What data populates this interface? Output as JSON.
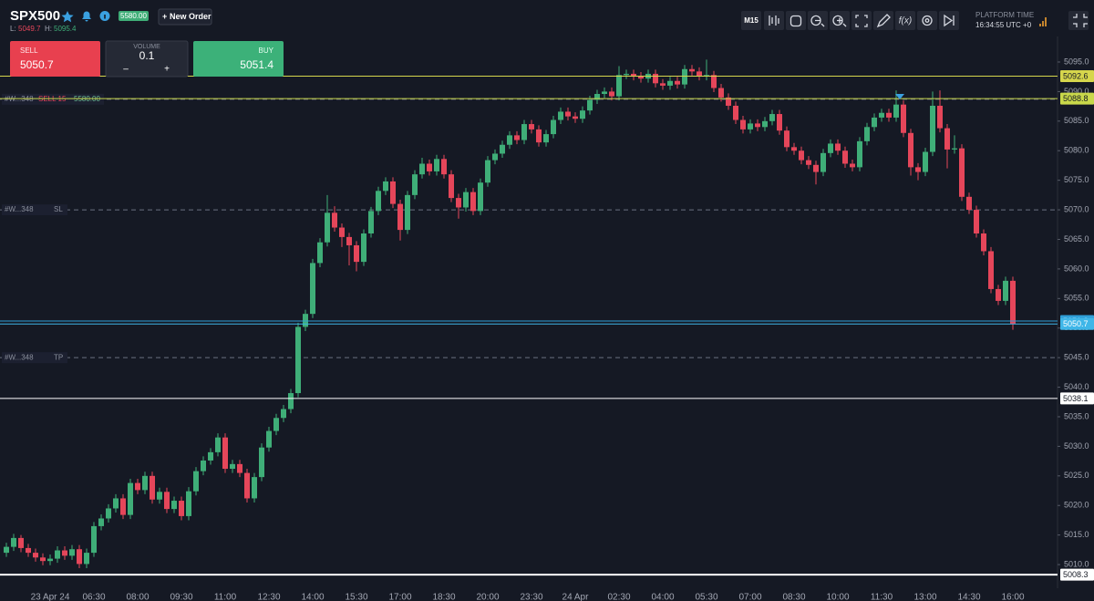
{
  "header": {
    "symbol": "SPX500",
    "badge": "5580.00",
    "low_label": "L:",
    "low": "5049.7",
    "high_label": "H:",
    "high": "5095.4",
    "new_order": "New Order"
  },
  "trade_panel": {
    "sell_label": "SELL",
    "sell_price": "5050.7",
    "volume_label": "VOLUME",
    "volume": "0.1",
    "minus": "–",
    "plus": "+",
    "buy_label": "BUY",
    "buy_price": "5051.4"
  },
  "toolbar": {
    "timeframe": "M15",
    "platform_time_label": "PLATFORM TIME",
    "platform_time": "16:34:55 UTC +0"
  },
  "chart_data": {
    "type": "candlestick",
    "up_color": "#3fae78",
    "down_color": "#e5465a",
    "ylim": [
      5006,
      5096
    ],
    "yticks": [
      {
        "value": 5010,
        "label": "5010.0"
      },
      {
        "value": 5015,
        "label": "5015.0"
      },
      {
        "value": 5020,
        "label": "5020.0"
      },
      {
        "value": 5025,
        "label": "5025.0"
      },
      {
        "value": 5030,
        "label": "5030.0"
      },
      {
        "value": 5035,
        "label": "5035.0"
      },
      {
        "value": 5040,
        "label": "5040.0"
      },
      {
        "value": 5045,
        "label": "5045.0"
      },
      {
        "value": 5050,
        "label": "5050.0"
      },
      {
        "value": 5055,
        "label": "5055.0"
      },
      {
        "value": 5060,
        "label": "5060.0"
      },
      {
        "value": 5065,
        "label": "5065.0"
      },
      {
        "value": 5070,
        "label": "5070.0"
      },
      {
        "value": 5075,
        "label": "5075.0"
      },
      {
        "value": 5080,
        "label": "5080.0"
      },
      {
        "value": 5085,
        "label": "5085.0"
      },
      {
        "value": 5090,
        "label": "5090.0"
      },
      {
        "value": 5095,
        "label": "5095.0"
      }
    ],
    "xticks": [
      "23 Apr 24",
      "06:30",
      "08:00",
      "09:30",
      "11:00",
      "12:30",
      "14:00",
      "15:30",
      "17:00",
      "18:30",
      "20:00",
      "23:30",
      "24 Apr",
      "02:30",
      "04:00",
      "05:30",
      "07:00",
      "08:30",
      "10:00",
      "11:30",
      "13:00",
      "14:30",
      "16:00"
    ],
    "price_lines": [
      {
        "value": 5092.6,
        "color": "#d6d64c"
      },
      {
        "value": 5088.8,
        "color": "#c9d84a"
      },
      {
        "value": 5038.1,
        "color": "#ffffff"
      },
      {
        "value": 5008.3,
        "color": "#ffffff"
      },
      {
        "value": 5051.2,
        "color": "#2f9fd8"
      },
      {
        "value": 5050.7,
        "color": "#3fb6e8"
      }
    ],
    "order_lines": [
      {
        "id": "#W...348",
        "label": "SELL 15",
        "price": "5580.00",
        "value": 5088.7
      },
      {
        "id": "#W...348",
        "label": "SL",
        "value": 5070.0
      },
      {
        "id": "#W...348",
        "label": "TP",
        "value": 5045.0
      }
    ],
    "candles": [
      [
        5012.0,
        5013.7,
        5011.3,
        5013.0
      ],
      [
        5013.0,
        5015.2,
        5012.3,
        5014.5
      ],
      [
        5014.5,
        5015.0,
        5012.1,
        5012.8
      ],
      [
        5012.8,
        5013.5,
        5011.3,
        5012.0
      ],
      [
        5012.0,
        5012.7,
        5010.5,
        5011.2
      ],
      [
        5011.2,
        5011.9,
        5009.9,
        5010.6
      ],
      [
        5010.6,
        5011.7,
        5009.9,
        5011.0
      ],
      [
        5011.0,
        5013.1,
        5010.3,
        5012.4
      ],
      [
        5012.4,
        5013.1,
        5010.8,
        5011.5
      ],
      [
        5011.5,
        5013.3,
        5010.8,
        5012.6
      ],
      [
        5012.6,
        5013.3,
        5009.4,
        5010.1
      ],
      [
        5010.1,
        5012.7,
        5009.4,
        5012.0
      ],
      [
        5012.0,
        5017.2,
        5011.3,
        5016.5
      ],
      [
        5016.5,
        5018.5,
        5015.8,
        5017.8
      ],
      [
        5017.8,
        5020.2,
        5017.1,
        5019.5
      ],
      [
        5019.5,
        5021.9,
        5018.8,
        5021.2
      ],
      [
        5021.2,
        5021.9,
        5017.7,
        5018.4
      ],
      [
        5018.4,
        5024.5,
        5017.7,
        5023.8
      ],
      [
        5023.8,
        5024.5,
        5021.9,
        5022.6
      ],
      [
        5022.6,
        5025.7,
        5021.9,
        5025.0
      ],
      [
        5025.0,
        5025.7,
        5020.3,
        5021.0
      ],
      [
        5021.0,
        5023.0,
        5020.3,
        5022.3
      ],
      [
        5022.3,
        5023.0,
        5018.7,
        5019.4
      ],
      [
        5019.4,
        5021.5,
        5018.7,
        5020.8
      ],
      [
        5020.8,
        5021.5,
        5017.5,
        5018.2
      ],
      [
        5018.2,
        5023.1,
        5017.5,
        5022.4
      ],
      [
        5022.4,
        5026.5,
        5021.7,
        5025.8
      ],
      [
        5025.8,
        5028.3,
        5025.1,
        5027.6
      ],
      [
        5027.6,
        5029.7,
        5026.9,
        5029.0
      ],
      [
        5029.0,
        5032.2,
        5028.3,
        5031.5
      ],
      [
        5031.5,
        5032.2,
        5025.5,
        5026.2
      ],
      [
        5026.2,
        5027.7,
        5025.5,
        5027.0
      ],
      [
        5027.0,
        5027.7,
        5024.8,
        5025.5
      ],
      [
        5025.5,
        5026.2,
        5020.5,
        5021.2
      ],
      [
        5021.2,
        5025.5,
        5020.5,
        5024.8
      ],
      [
        5024.8,
        5030.5,
        5024.1,
        5029.8
      ],
      [
        5029.8,
        5033.3,
        5029.1,
        5032.6
      ],
      [
        5032.6,
        5035.5,
        5031.9,
        5034.8
      ],
      [
        5034.8,
        5037.0,
        5034.1,
        5036.3
      ],
      [
        5036.3,
        5039.7,
        5035.6,
        5039.0
      ],
      [
        5039.0,
        5050.9,
        5038.3,
        5050.2
      ],
      [
        5050.2,
        5053.1,
        5049.5,
        5052.4
      ],
      [
        5052.4,
        5061.7,
        5051.7,
        5061.0
      ],
      [
        5061.0,
        5065.2,
        5060.3,
        5064.5
      ],
      [
        5064.5,
        5072.5,
        5063.8,
        5069.5
      ],
      [
        5069.5,
        5070.6,
        5066.3,
        5067.0
      ],
      [
        5067.0,
        5067.7,
        5063.7,
        5065.4
      ],
      [
        5065.4,
        5066.1,
        5060.6,
        5064.0
      ],
      [
        5064.0,
        5064.7,
        5059.6,
        5061.2
      ],
      [
        5061.2,
        5066.7,
        5060.5,
        5066.0
      ],
      [
        5066.0,
        5070.5,
        5065.3,
        5069.8
      ],
      [
        5069.8,
        5073.9,
        5069.1,
        5073.2
      ],
      [
        5073.2,
        5075.5,
        5072.5,
        5074.8
      ],
      [
        5074.8,
        5075.5,
        5070.3,
        5071.0
      ],
      [
        5071.0,
        5071.7,
        5064.8,
        5066.6
      ],
      [
        5066.6,
        5073.2,
        5065.9,
        5072.5
      ],
      [
        5072.5,
        5076.7,
        5071.8,
        5076.0
      ],
      [
        5076.0,
        5078.8,
        5075.3,
        5077.8
      ],
      [
        5077.8,
        5078.5,
        5075.8,
        5076.5
      ],
      [
        5076.5,
        5079.3,
        5075.8,
        5078.6
      ],
      [
        5078.6,
        5079.3,
        5075.3,
        5076.0
      ],
      [
        5076.0,
        5076.7,
        5071.3,
        5072.0
      ],
      [
        5072.0,
        5072.7,
        5068.5,
        5070.4
      ],
      [
        5070.4,
        5073.7,
        5069.7,
        5073.0
      ],
      [
        5073.0,
        5073.7,
        5069.1,
        5069.8
      ],
      [
        5069.8,
        5075.3,
        5069.1,
        5074.6
      ],
      [
        5074.6,
        5079.1,
        5073.9,
        5078.4
      ],
      [
        5078.4,
        5080.2,
        5077.7,
        5079.5
      ],
      [
        5079.5,
        5081.7,
        5078.8,
        5081.0
      ],
      [
        5081.0,
        5083.3,
        5080.3,
        5082.6
      ],
      [
        5082.6,
        5083.3,
        5081.1,
        5081.8
      ],
      [
        5081.8,
        5085.2,
        5081.1,
        5084.5
      ],
      [
        5084.5,
        5085.2,
        5082.9,
        5083.6
      ],
      [
        5083.6,
        5084.3,
        5080.7,
        5081.4
      ],
      [
        5081.4,
        5083.5,
        5080.7,
        5082.8
      ],
      [
        5082.8,
        5085.9,
        5082.1,
        5085.2
      ],
      [
        5085.2,
        5087.3,
        5084.5,
        5086.6
      ],
      [
        5086.6,
        5087.3,
        5085.1,
        5085.8
      ],
      [
        5085.8,
        5086.5,
        5084.7,
        5085.4
      ],
      [
        5085.4,
        5087.5,
        5084.7,
        5086.8
      ],
      [
        5086.8,
        5089.3,
        5086.1,
        5088.6
      ],
      [
        5088.6,
        5090.3,
        5087.9,
        5089.6
      ],
      [
        5089.6,
        5090.7,
        5088.9,
        5090.0
      ],
      [
        5090.0,
        5090.7,
        5088.5,
        5089.2
      ],
      [
        5089.2,
        5094.3,
        5088.5,
        5092.8
      ],
      [
        5092.8,
        5093.7,
        5092.1,
        5093.0
      ],
      [
        5093.0,
        5093.7,
        5091.9,
        5092.6
      ],
      [
        5092.6,
        5093.3,
        5091.5,
        5092.2
      ],
      [
        5092.2,
        5093.7,
        5091.5,
        5093.0
      ],
      [
        5093.0,
        5093.7,
        5090.7,
        5091.4
      ],
      [
        5091.4,
        5092.1,
        5090.3,
        5091.0
      ],
      [
        5091.0,
        5092.5,
        5090.3,
        5091.8
      ],
      [
        5091.8,
        5092.5,
        5090.5,
        5091.2
      ],
      [
        5091.2,
        5094.5,
        5090.5,
        5093.8
      ],
      [
        5093.8,
        5094.5,
        5092.7,
        5093.4
      ],
      [
        5093.4,
        5094.1,
        5091.9,
        5092.6
      ],
      [
        5092.6,
        5095.4,
        5091.9,
        5092.8
      ],
      [
        5092.8,
        5093.5,
        5089.9,
        5090.6
      ],
      [
        5090.6,
        5091.3,
        5088.3,
        5089.0
      ],
      [
        5089.0,
        5089.7,
        5086.9,
        5087.6
      ],
      [
        5087.6,
        5088.3,
        5084.5,
        5085.2
      ],
      [
        5085.2,
        5085.9,
        5082.9,
        5083.6
      ],
      [
        5083.6,
        5085.3,
        5082.9,
        5084.6
      ],
      [
        5084.6,
        5085.3,
        5083.3,
        5084.0
      ],
      [
        5084.0,
        5085.7,
        5083.3,
        5085.0
      ],
      [
        5085.0,
        5086.9,
        5084.3,
        5086.2
      ],
      [
        5086.2,
        5086.9,
        5082.7,
        5083.4
      ],
      [
        5083.4,
        5084.1,
        5079.9,
        5080.6
      ],
      [
        5080.6,
        5081.3,
        5079.3,
        5080.0
      ],
      [
        5080.0,
        5080.7,
        5077.7,
        5078.4
      ],
      [
        5078.4,
        5079.1,
        5076.9,
        5077.6
      ],
      [
        5077.6,
        5078.3,
        5074.3,
        5076.4
      ],
      [
        5076.4,
        5080.3,
        5075.7,
        5079.6
      ],
      [
        5079.6,
        5081.9,
        5078.9,
        5081.2
      ],
      [
        5081.2,
        5081.9,
        5079.3,
        5080.0
      ],
      [
        5080.0,
        5080.7,
        5077.1,
        5077.8
      ],
      [
        5077.8,
        5078.5,
        5076.5,
        5077.2
      ],
      [
        5077.2,
        5082.3,
        5076.5,
        5081.6
      ],
      [
        5081.6,
        5084.7,
        5080.9,
        5084.0
      ],
      [
        5084.0,
        5086.3,
        5083.3,
        5085.6
      ],
      [
        5085.6,
        5087.1,
        5084.9,
        5086.4
      ],
      [
        5086.4,
        5087.1,
        5084.9,
        5085.6
      ],
      [
        5085.6,
        5090.2,
        5084.9,
        5087.8
      ],
      [
        5087.8,
        5088.5,
        5082.3,
        5083.0
      ],
      [
        5083.0,
        5083.7,
        5075.8,
        5077.2
      ],
      [
        5077.2,
        5077.9,
        5075.0,
        5076.4
      ],
      [
        5076.4,
        5080.5,
        5075.7,
        5079.8
      ],
      [
        5079.8,
        5090.0,
        5079.1,
        5087.6
      ],
      [
        5087.6,
        5090.2,
        5083.1,
        5083.8
      ],
      [
        5083.8,
        5084.5,
        5077.0,
        5080.2
      ],
      [
        5080.2,
        5082.6,
        5079.5,
        5080.4
      ],
      [
        5080.4,
        5081.1,
        5071.5,
        5072.2
      ],
      [
        5072.2,
        5072.9,
        5069.3,
        5070.0
      ],
      [
        5070.0,
        5070.7,
        5065.3,
        5066.0
      ],
      [
        5066.0,
        5066.7,
        5062.3,
        5063.0
      ],
      [
        5063.0,
        5063.7,
        5055.9,
        5056.6
      ],
      [
        5056.6,
        5057.3,
        5053.9,
        5054.6
      ],
      [
        5054.6,
        5058.7,
        5053.9,
        5058.0
      ],
      [
        5058.0,
        5058.7,
        5049.7,
        5050.7
      ]
    ]
  }
}
